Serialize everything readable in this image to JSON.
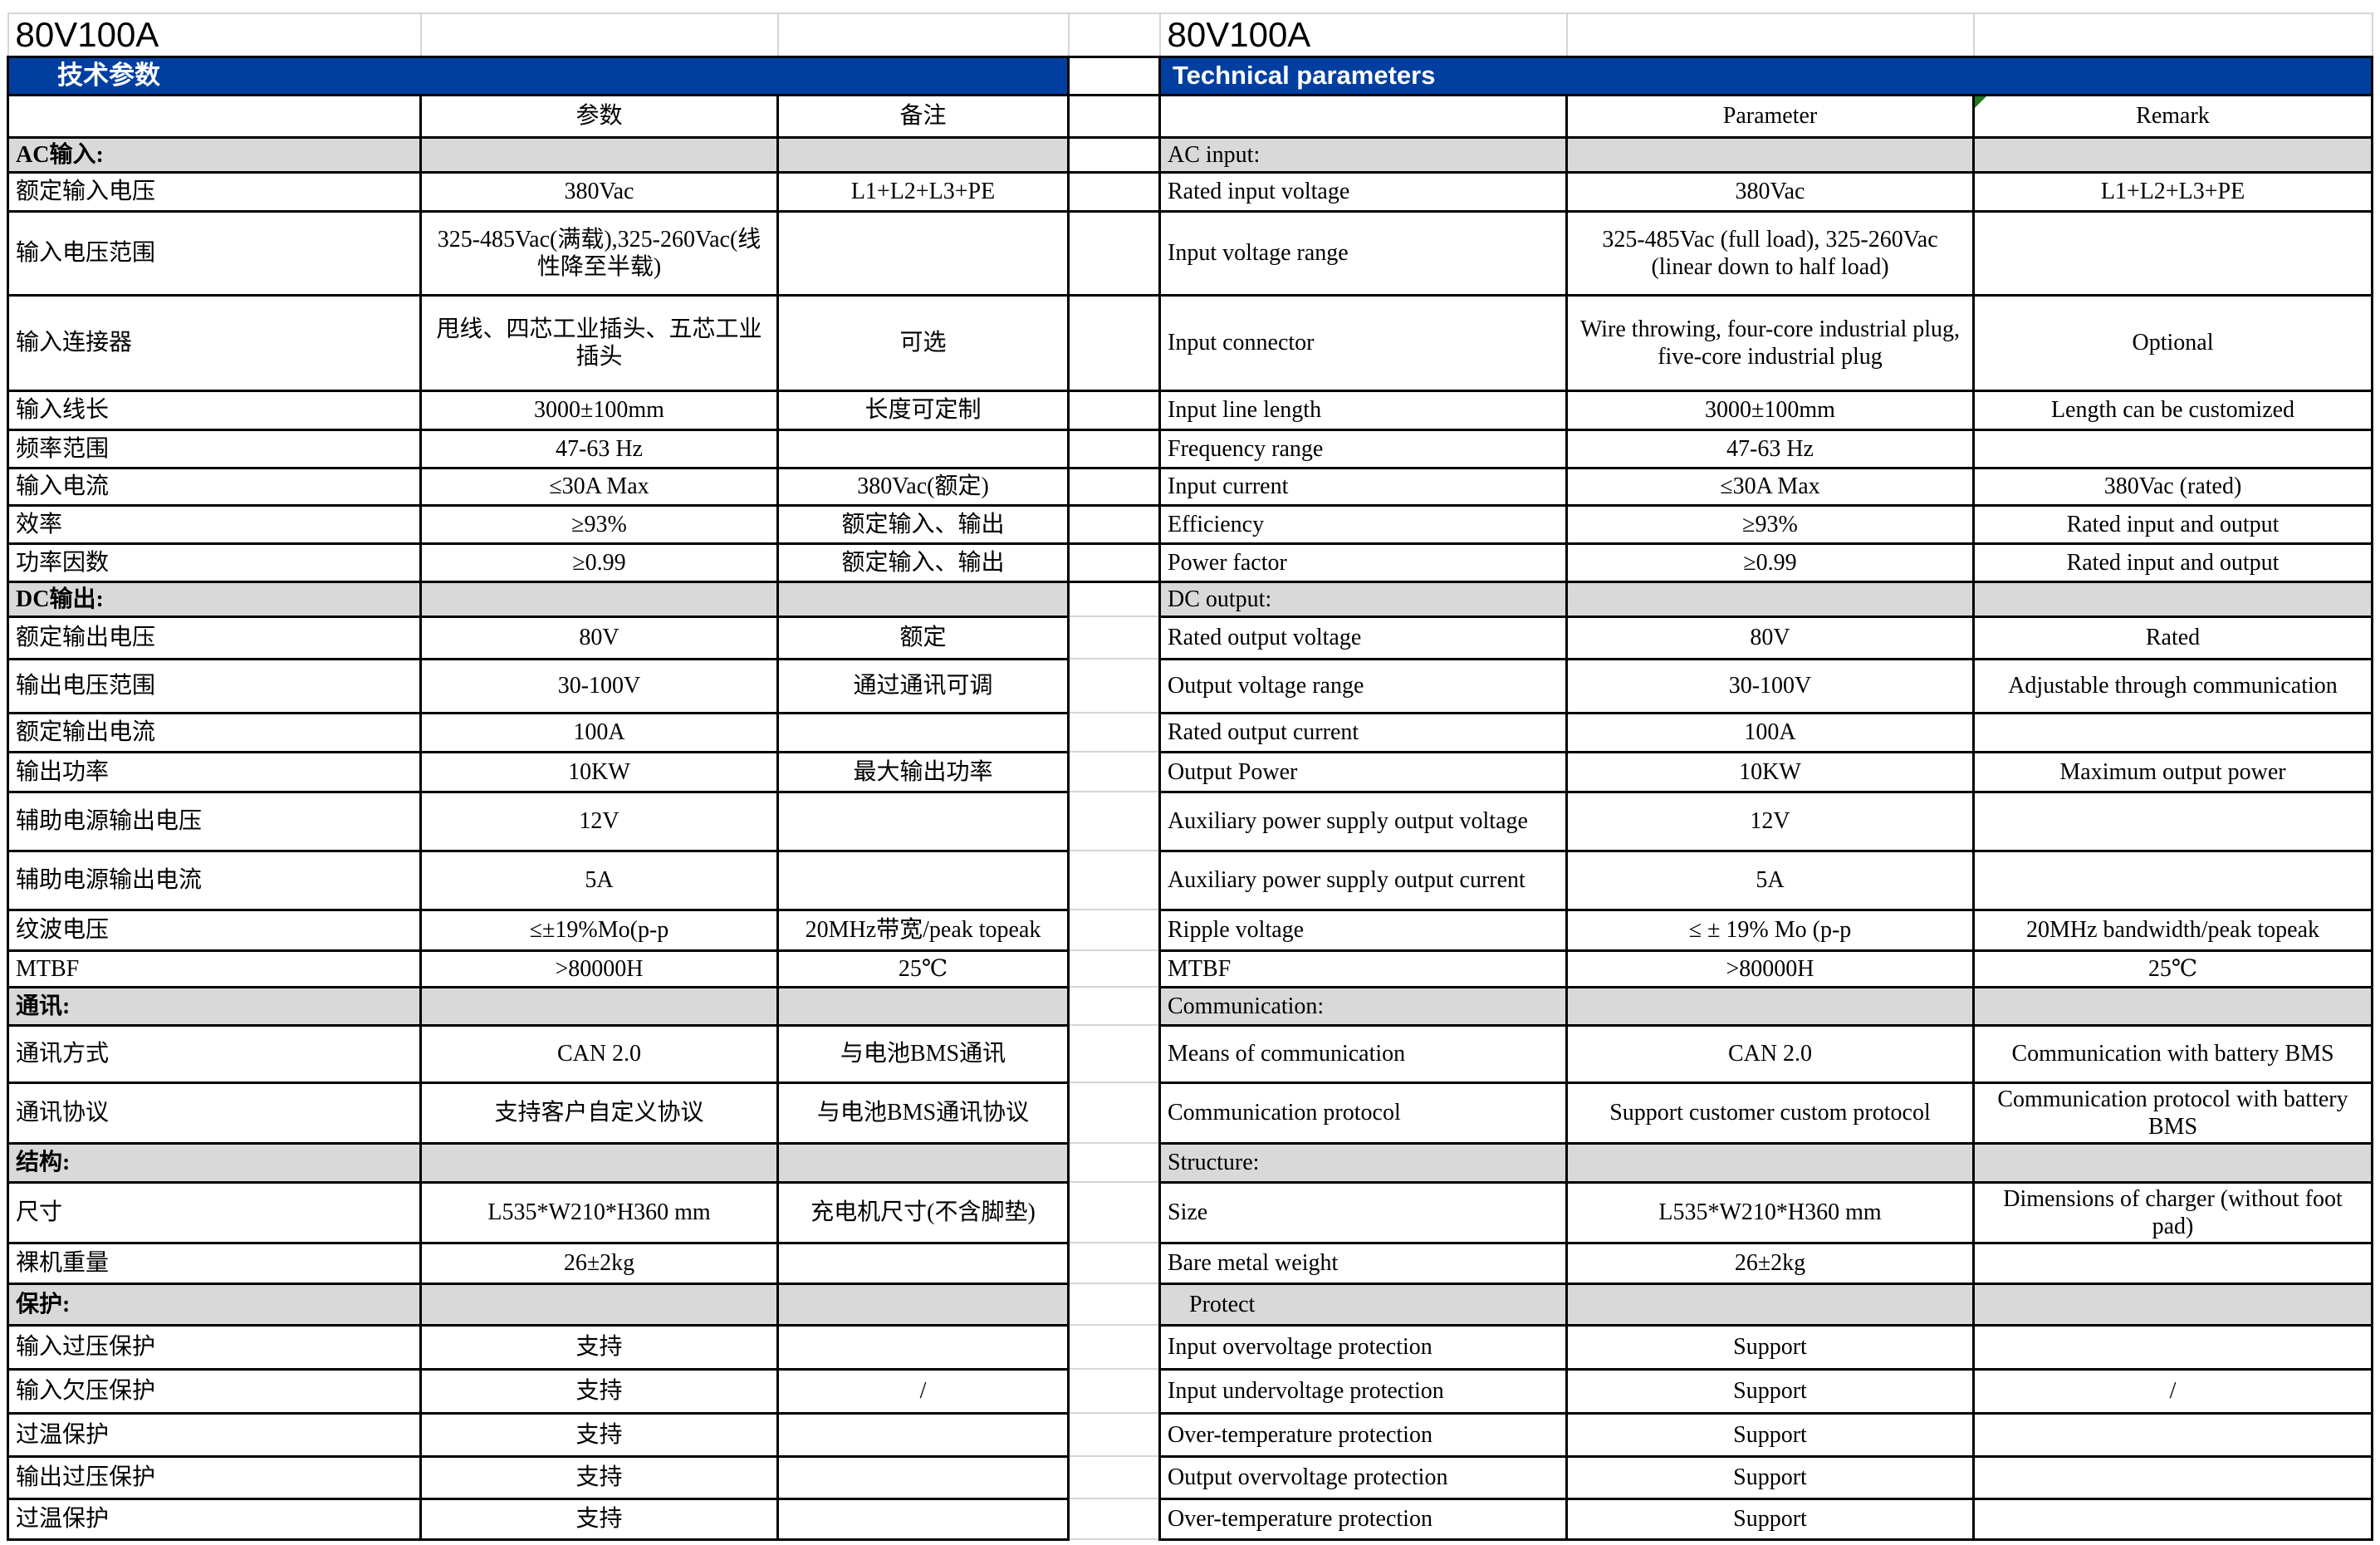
{
  "colors": {
    "banner_blue": "#003FA0",
    "section_grey": "#D9D9D9",
    "gridline_grey": "#D5D5D5",
    "marker_green": "#1E7B1E"
  },
  "rows": [
    {
      "kind": "title",
      "cells": [
        "80V100A",
        "",
        "",
        "",
        "80V100A",
        "",
        ""
      ]
    },
    {
      "kind": "band",
      "left": "技术参数",
      "right": "Technical parameters"
    },
    {
      "kind": "header",
      "cells": [
        "",
        "参数",
        "备注",
        "",
        "",
        "Parameter",
        "Remark"
      ]
    },
    {
      "kind": "section",
      "cells": [
        "AC输入:",
        "",
        "",
        "",
        "AC input:",
        "",
        ""
      ]
    },
    {
      "kind": "data",
      "cells": [
        "额定输入电压",
        "380Vac",
        "L1+L2+L3+PE",
        "",
        "Rated input voltage",
        "380Vac",
        "L1+L2+L3+PE"
      ]
    },
    {
      "kind": "data",
      "cells": [
        "输入电压范围",
        "325-485Vac(满载),325-260Vac(线性降至半载)",
        "",
        "",
        "Input voltage range",
        "325-485Vac (full load), 325-260Vac (linear down to half load)",
        ""
      ]
    },
    {
      "kind": "data",
      "cells": [
        "输入连接器",
        "甩线、四芯工业插头、五芯工业插头",
        "可选",
        "",
        "Input connector",
        "Wire throwing, four-core industrial plug, five-core industrial plug",
        "Optional"
      ]
    },
    {
      "kind": "data",
      "cells": [
        "输入线长",
        "3000±100mm",
        "长度可定制",
        "",
        "Input line length",
        "3000±100mm",
        "Length can be customized"
      ]
    },
    {
      "kind": "data",
      "cells": [
        "频率范围",
        "47-63 Hz",
        "",
        "",
        "Frequency range",
        "47-63 Hz",
        ""
      ]
    },
    {
      "kind": "data",
      "cells": [
        "输入电流",
        "≤30A Max",
        "380Vac(额定)",
        "",
        "Input current",
        "≤30A Max",
        "380Vac (rated)"
      ]
    },
    {
      "kind": "data",
      "cells": [
        "效率",
        "≥93%",
        "额定输入、输出",
        "",
        "Efficiency",
        "≥93%",
        "Rated input and output"
      ]
    },
    {
      "kind": "data",
      "cells": [
        "功率因数",
        "≥0.99",
        "额定输入、输出",
        "",
        "Power factor",
        "≥0.99",
        "Rated input and output"
      ]
    },
    {
      "kind": "section",
      "cells": [
        "DC输出:",
        "",
        "",
        "",
        "DC output:",
        "",
        ""
      ]
    },
    {
      "kind": "data",
      "cells": [
        "额定输出电压",
        "80V",
        "额定",
        "",
        "Rated output voltage",
        "80V",
        "Rated"
      ]
    },
    {
      "kind": "data",
      "cells": [
        "输出电压范围",
        "30-100V",
        "通过通讯可调",
        "",
        "Output voltage range",
        "30-100V",
        "Adjustable through communication"
      ]
    },
    {
      "kind": "data",
      "cells": [
        "额定输出电流",
        "100A",
        "",
        "",
        "Rated output current",
        "100A",
        ""
      ]
    },
    {
      "kind": "data",
      "cells": [
        "输出功率",
        "10KW",
        "最大输出功率",
        "",
        "Output Power",
        "10KW",
        "Maximum output power"
      ]
    },
    {
      "kind": "data",
      "cells": [
        "辅助电源输出电压",
        "12V",
        "",
        "",
        "Auxiliary power supply output voltage",
        "12V",
        ""
      ]
    },
    {
      "kind": "data",
      "cells": [
        "辅助电源输出电流",
        "5A",
        "",
        "",
        "Auxiliary power supply output current",
        "5A",
        ""
      ]
    },
    {
      "kind": "data",
      "cells": [
        "纹波电压",
        "≤±19%Mo(p-p",
        "20MHz带宽/peak topeak",
        "",
        "Ripple voltage",
        "≤ ± 19% Mo (p-p",
        "20MHz bandwidth/peak topeak"
      ]
    },
    {
      "kind": "data",
      "cells": [
        "MTBF",
        ">80000H",
        "25℃",
        "",
        "MTBF",
        ">80000H",
        "25℃"
      ]
    },
    {
      "kind": "section",
      "cells": [
        "通讯:",
        "",
        "",
        "",
        "Communication:",
        "",
        ""
      ]
    },
    {
      "kind": "data",
      "cells": [
        "通讯方式",
        "CAN 2.0",
        "与电池BMS通讯",
        "",
        "Means of communication",
        "CAN 2.0",
        "Communication with battery BMS"
      ]
    },
    {
      "kind": "data",
      "cells": [
        "通讯协议",
        "支持客户自定义协议",
        "与电池BMS通讯协议",
        "",
        "Communication protocol",
        "Support customer custom protocol",
        "Communication protocol with battery BMS"
      ]
    },
    {
      "kind": "section",
      "cells": [
        "结构:",
        "",
        "",
        "",
        "Structure:",
        "",
        ""
      ]
    },
    {
      "kind": "data",
      "cells": [
        "尺寸",
        "L535*W210*H360 mm",
        "充电机尺寸(不含脚垫)",
        "",
        "Size",
        "L535*W210*H360 mm",
        "Dimensions of charger (without foot pad)"
      ]
    },
    {
      "kind": "data",
      "cells": [
        "裸机重量",
        "26±2kg",
        "",
        "",
        "Bare metal weight",
        "26±2kg",
        ""
      ]
    },
    {
      "kind": "section",
      "indent_right": true,
      "cells": [
        "保护:",
        "",
        "",
        "",
        "Protect",
        "",
        ""
      ]
    },
    {
      "kind": "data",
      "cells": [
        "输入过压保护",
        "支持",
        "",
        "",
        "Input overvoltage protection",
        "Support",
        ""
      ]
    },
    {
      "kind": "data",
      "cells": [
        "输入欠压保护",
        "支持",
        "/",
        "",
        "Input undervoltage protection",
        "Support",
        "/"
      ]
    },
    {
      "kind": "data",
      "cells": [
        "过温保护",
        "支持",
        "",
        "",
        "Over-temperature protection",
        "Support",
        ""
      ]
    },
    {
      "kind": "data",
      "cells": [
        "输出过压保护",
        "支持",
        "",
        "",
        "Output overvoltage protection",
        "Support",
        ""
      ]
    },
    {
      "kind": "data",
      "cells": [
        "过温保护",
        "支持",
        "",
        "",
        "Over-temperature protection",
        "Support",
        ""
      ]
    }
  ]
}
